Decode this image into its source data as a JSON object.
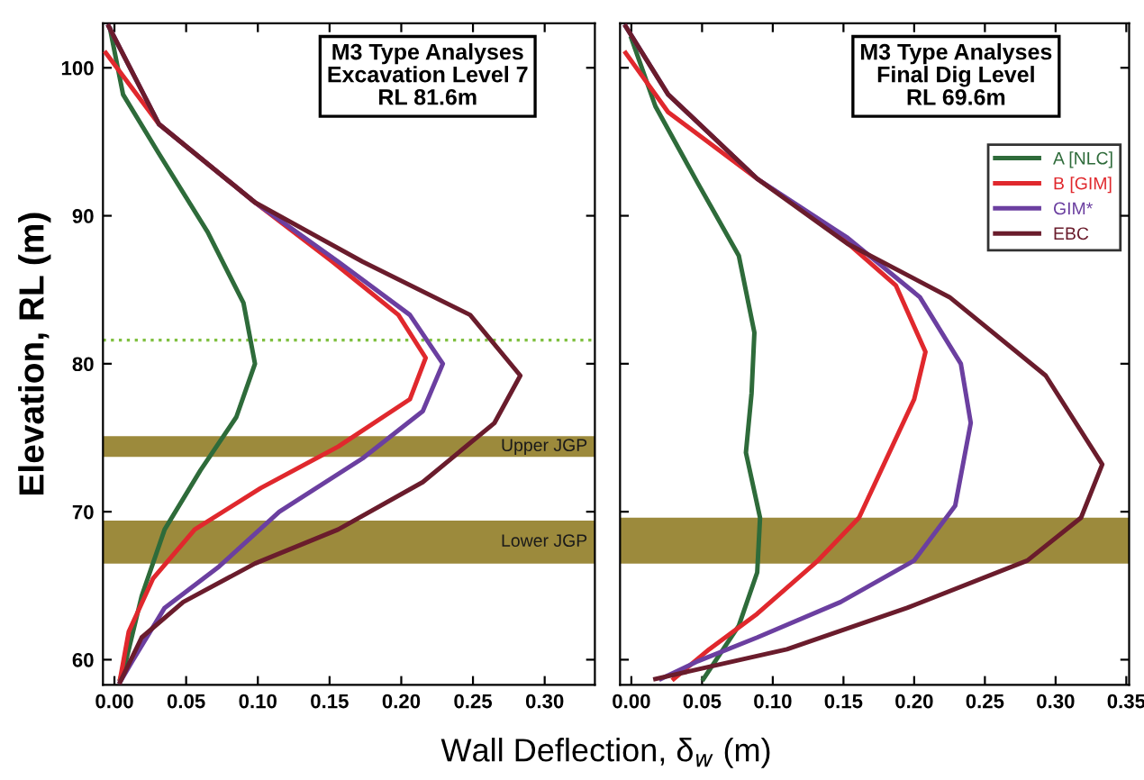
{
  "chart_data": [
    {
      "type": "line",
      "title": "M3 Type Analyses\nExcavation Level 7\nRL 81.6m",
      "xlabel": "Wall Deflection, δ$_{w}$ (m)",
      "ylabel": "Elevation, RL (m)",
      "xlim": [
        -0.008,
        0.335
      ],
      "xticks": [
        {
          "value": 0,
          "label": "0.00"
        },
        {
          "value": 0.05,
          "label": "0.05"
        },
        {
          "value": 0.1,
          "label": "0.10"
        },
        {
          "value": 0.15,
          "label": "0.15"
        },
        {
          "value": 0.2,
          "label": "0.20"
        },
        {
          "value": 0.25,
          "label": "0.25"
        },
        {
          "value": 0.3,
          "label": "0.30"
        }
      ],
      "ylim": [
        58.3,
        103
      ],
      "yticks": [
        60,
        70,
        80,
        90,
        100
      ],
      "grid": false,
      "legend": false,
      "series": [
        {
          "color": "#2e6b3a",
          "x": [
            -0.003,
            0.006,
            0.031,
            0.065,
            0.09,
            0.098,
            0.085,
            0.06,
            0.035,
            0.019,
            0.008,
            0.004
          ],
          "values": [
            102.6,
            98.2,
            94.2,
            88.9,
            84.1,
            80.0,
            76.4,
            72.8,
            68.8,
            64.3,
            59.9,
            58.7
          ]
        },
        {
          "color": "#e0282d",
          "x": [
            -0.006,
            0.031,
            0.098,
            0.152,
            0.198,
            0.217,
            0.206,
            0.156,
            0.102,
            0.056,
            0.027,
            0.01,
            0.004
          ],
          "values": [
            101,
            96.2,
            90.9,
            86.9,
            83.3,
            80.4,
            77.6,
            74.4,
            71.6,
            68.8,
            65.5,
            61.9,
            58.7
          ]
        },
        {
          "color": "#6b3fa0",
          "x": [
            -0.004,
            0.031,
            0.098,
            0.156,
            0.206,
            0.229,
            0.215,
            0.173,
            0.115,
            0.073,
            0.035,
            0.0125,
            0.004
          ],
          "values": [
            102.8,
            96.2,
            90.9,
            86.9,
            83.3,
            80.0,
            76.8,
            73.6,
            70.0,
            66.3,
            63.5,
            59.9,
            58.5
          ]
        },
        {
          "color": "#6a1c2c",
          "x": [
            -0.004,
            0.031,
            0.098,
            0.173,
            0.248,
            0.283,
            0.265,
            0.215,
            0.156,
            0.098,
            0.048,
            0.019,
            0.004
          ],
          "values": [
            102.8,
            96.2,
            90.9,
            86.9,
            83.3,
            79.2,
            76.0,
            72.0,
            68.8,
            66.5,
            63.9,
            61.5,
            58.5
          ]
        }
      ],
      "ref_lines": [
        {
          "axis": "y",
          "value": 81.6,
          "color": "#7fc040",
          "line_style": "dotted"
        }
      ],
      "bands": [
        {
          "axis": "y",
          "from": 73.7,
          "to": 75.1,
          "label": "Upper JGP",
          "color": "#9c8a3c"
        },
        {
          "axis": "y",
          "from": 66.5,
          "to": 69.4,
          "label": "Lower JGP",
          "color": "#9c8a3c"
        }
      ]
    },
    {
      "type": "line",
      "title": "M3 Type Analyses\nFinal Dig Level\nRL 69.6m",
      "xlim": [
        -0.008,
        0.352
      ],
      "xticks": [
        {
          "value": 0,
          "label": "0.00"
        },
        {
          "value": 0.05,
          "label": "0.05"
        },
        {
          "value": 0.1,
          "label": "0.10"
        },
        {
          "value": 0.15,
          "label": "0.15"
        },
        {
          "value": 0.2,
          "label": "0.20"
        },
        {
          "value": 0.25,
          "label": "0.25"
        },
        {
          "value": 0.3,
          "label": "0.30"
        },
        {
          "value": 0.35,
          "label": "0.35"
        }
      ],
      "ylim": [
        58.3,
        103
      ],
      "yticks": [
        60,
        70,
        80,
        90,
        100
      ],
      "tick_labels": "x",
      "grid": false,
      "legend": "top right",
      "series": [
        {
          "name": "A [NLC]",
          "color": "#2e6b3a",
          "x": [
            0.0,
            0.017,
            0.047,
            0.076,
            0.087,
            0.085,
            0.081,
            0.091,
            0.089,
            0.076,
            0.051
          ],
          "values": [
            102,
            97.4,
            92.2,
            87.3,
            82.1,
            78.0,
            74.0,
            69.6,
            65.9,
            62.3,
            58.7
          ]
        },
        {
          "name": "B [GIM]",
          "color": "#e0282d",
          "x": [
            -0.004,
            0.026,
            0.089,
            0.144,
            0.187,
            0.208,
            0.2,
            0.161,
            0.132,
            0.089,
            0.055,
            0.03
          ],
          "values": [
            101,
            97.0,
            92.5,
            88.9,
            85.3,
            80.8,
            77.6,
            69.6,
            66.7,
            63.1,
            60.7,
            58.7
          ]
        },
        {
          "name": "GIM*",
          "color": "#6b3fa0",
          "x": [
            -0.004,
            0.026,
            0.089,
            0.153,
            0.204,
            0.233,
            0.24,
            0.229,
            0.2,
            0.148,
            0.089,
            0.047,
            0.021
          ],
          "values": [
            102.8,
            98.2,
            92.5,
            88.5,
            84.5,
            80.0,
            76.0,
            70.4,
            66.7,
            63.9,
            61.5,
            59.9,
            58.7
          ]
        },
        {
          "name": "EBC",
          "color": "#6a1c2c",
          "x": [
            -0.004,
            0.026,
            0.089,
            0.153,
            0.225,
            0.293,
            0.333,
            0.318,
            0.28,
            0.195,
            0.11,
            0.017
          ],
          "values": [
            102.8,
            98.2,
            92.5,
            88.1,
            84.5,
            79.2,
            73.2,
            69.6,
            66.7,
            63.5,
            60.7,
            58.7
          ]
        }
      ],
      "bands": [
        {
          "axis": "y",
          "from": 66.5,
          "to": 69.6,
          "color": "#9c8a3c"
        }
      ]
    }
  ]
}
